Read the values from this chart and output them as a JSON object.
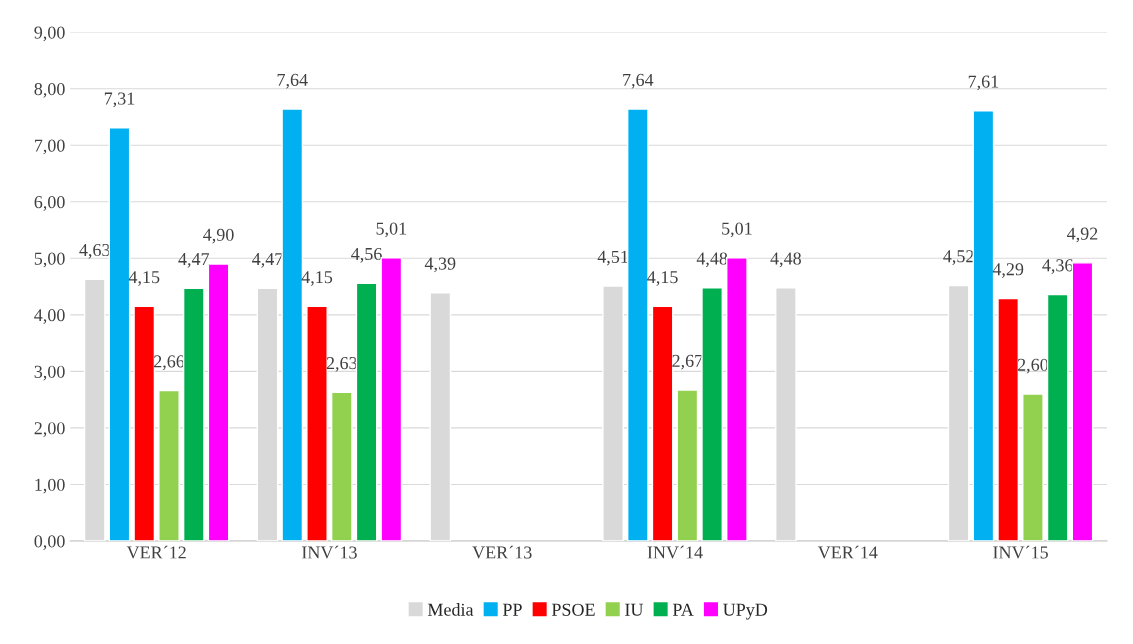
{
  "chart_data": {
    "type": "bar",
    "categories": [
      "VER´12",
      "INV´13",
      "VER´13",
      "INV´14",
      "VER´14",
      "INV´15"
    ],
    "series": [
      {
        "name": "Media",
        "color": "#d9d9d9",
        "values": [
          4.63,
          4.47,
          4.39,
          4.51,
          4.48,
          4.52
        ],
        "value_labels": [
          "4,63",
          "4,47",
          "4,39",
          "4,51",
          "4,48",
          "4,52"
        ]
      },
      {
        "name": "PP",
        "color": "#00b0f0",
        "values": [
          7.31,
          7.64,
          null,
          7.64,
          null,
          7.61
        ],
        "value_labels": [
          "7,31",
          "7,64",
          null,
          "7,64",
          null,
          "7,61"
        ]
      },
      {
        "name": "PSOE",
        "color": "#ff0000",
        "values": [
          4.15,
          4.15,
          null,
          4.15,
          null,
          4.29
        ],
        "value_labels": [
          "4,15",
          "4,15",
          null,
          "4,15",
          null,
          "4,29"
        ]
      },
      {
        "name": "IU",
        "color": "#92d050",
        "values": [
          2.66,
          2.63,
          null,
          2.67,
          null,
          2.6
        ],
        "value_labels": [
          "2,66",
          "2,63",
          null,
          "2,67",
          null,
          "2,60"
        ]
      },
      {
        "name": "PA",
        "color": "#00b050",
        "values": [
          4.47,
          4.56,
          null,
          4.48,
          null,
          4.36
        ],
        "value_labels": [
          "4,47",
          "4,56",
          null,
          "4,48",
          null,
          "4,36"
        ]
      },
      {
        "name": "UPyD",
        "color": "#ff00ff",
        "values": [
          4.9,
          5.01,
          null,
          5.01,
          null,
          4.92
        ],
        "value_labels": [
          "4,90",
          "5,01",
          null,
          "5,01",
          null,
          "4,92"
        ]
      }
    ],
    "ylim": [
      0,
      9
    ],
    "yticks": [
      {
        "value": 0,
        "label": "0,00"
      },
      {
        "value": 1,
        "label": "1,00"
      },
      {
        "value": 2,
        "label": "2,00"
      },
      {
        "value": 3,
        "label": "3,00"
      },
      {
        "value": 4,
        "label": "4,00"
      },
      {
        "value": 5,
        "label": "5,00"
      },
      {
        "value": 6,
        "label": "6,00"
      },
      {
        "value": 7,
        "label": "7,00"
      },
      {
        "value": 8,
        "label": "8,00"
      },
      {
        "value": 9,
        "label": "9,00"
      }
    ],
    "grid": "y",
    "legend": "bottom"
  }
}
